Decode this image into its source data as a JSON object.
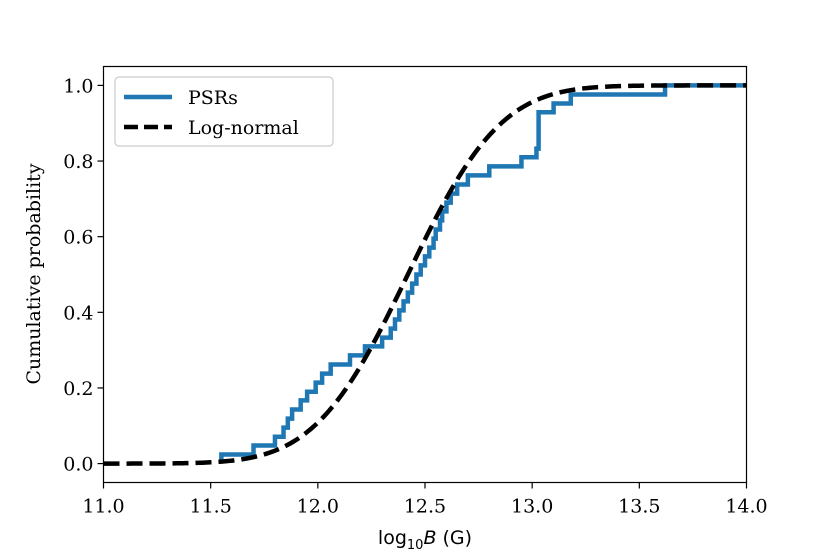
{
  "chart_data": {
    "type": "line",
    "title": "",
    "xlabel": {
      "prefix": "log",
      "subscript": "10",
      "variable": "B",
      "unit": " (G)"
    },
    "ylabel": "Cumulative probability",
    "xlim": [
      11.0,
      14.0
    ],
    "ylim": [
      -0.05,
      1.05
    ],
    "xticks": [
      11.0,
      11.5,
      12.0,
      12.5,
      13.0,
      13.5,
      14.0
    ],
    "xtick_labels": [
      "11.0",
      "11.5",
      "12.0",
      "12.5",
      "13.0",
      "13.5",
      "14.0"
    ],
    "yticks": [
      0.0,
      0.2,
      0.4,
      0.6,
      0.8,
      1.0
    ],
    "ytick_labels": [
      "0.0",
      "0.2",
      "0.4",
      "0.6",
      "0.8",
      "1.0"
    ],
    "grid": false,
    "legend_position": "top-left",
    "series": [
      {
        "name": "PSRs",
        "kind": "step",
        "color": "#1f77b4",
        "x": [
          11.55,
          11.55,
          11.7,
          11.7,
          11.8,
          11.8,
          11.84,
          11.84,
          11.86,
          11.86,
          11.88,
          11.88,
          11.92,
          11.92,
          11.95,
          11.95,
          11.99,
          11.99,
          12.02,
          12.02,
          12.06,
          12.06,
          12.15,
          12.15,
          12.22,
          12.22,
          12.3,
          12.3,
          12.34,
          12.34,
          12.36,
          12.36,
          12.38,
          12.38,
          12.4,
          12.4,
          12.42,
          12.42,
          12.44,
          12.44,
          12.46,
          12.46,
          12.48,
          12.48,
          12.5,
          12.5,
          12.52,
          12.52,
          12.54,
          12.54,
          12.55,
          12.55,
          12.57,
          12.57,
          12.58,
          12.58,
          12.6,
          12.6,
          12.62,
          12.62,
          12.65,
          12.65,
          12.7,
          12.7,
          12.8,
          12.8,
          12.95,
          12.95,
          13.02,
          13.02,
          13.03,
          13.03,
          13.1,
          13.1,
          13.18,
          13.18,
          13.62,
          13.62,
          14.0
        ],
        "y": [
          0.0,
          0.024,
          0.024,
          0.048,
          0.048,
          0.071,
          0.071,
          0.095,
          0.095,
          0.119,
          0.119,
          0.143,
          0.143,
          0.167,
          0.167,
          0.19,
          0.19,
          0.214,
          0.214,
          0.238,
          0.238,
          0.262,
          0.262,
          0.286,
          0.286,
          0.31,
          0.31,
          0.333,
          0.333,
          0.357,
          0.357,
          0.381,
          0.381,
          0.405,
          0.405,
          0.429,
          0.429,
          0.452,
          0.452,
          0.476,
          0.476,
          0.5,
          0.5,
          0.524,
          0.524,
          0.548,
          0.548,
          0.571,
          0.571,
          0.595,
          0.595,
          0.619,
          0.619,
          0.643,
          0.643,
          0.667,
          0.667,
          0.69,
          0.69,
          0.714,
          0.714,
          0.738,
          0.738,
          0.762,
          0.762,
          0.786,
          0.786,
          0.81,
          0.81,
          0.833,
          0.833,
          0.929,
          0.929,
          0.952,
          0.952,
          0.976,
          0.976,
          1.0,
          1.0
        ]
      },
      {
        "name": "Log-normal",
        "kind": "cdf",
        "color": "#000000",
        "mean": 12.42,
        "sigma": 0.34
      }
    ]
  }
}
